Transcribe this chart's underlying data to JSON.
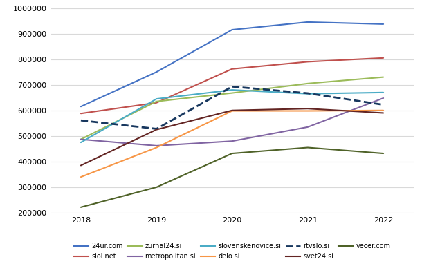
{
  "years": [
    2018,
    2019,
    2020,
    2021,
    2022
  ],
  "series_order": [
    "24ur.com",
    "siol.net",
    "zurnal24.si",
    "metropolitan.si",
    "slovenskenovice.si",
    "delo.si",
    "rtvslo.si",
    "svet24.si",
    "vecer.com"
  ],
  "series": {
    "24ur.com": {
      "values": [
        615000,
        750000,
        915000,
        945000,
        937000
      ],
      "color": "#4472C4",
      "linestyle": "solid",
      "linewidth": 1.5
    },
    "siol.net": {
      "values": [
        588000,
        630000,
        762000,
        790000,
        805000
      ],
      "color": "#C0504D",
      "linestyle": "solid",
      "linewidth": 1.5
    },
    "zurnal24.si": {
      "values": [
        487000,
        635000,
        668000,
        705000,
        730000
      ],
      "color": "#9BBB59",
      "linestyle": "solid",
      "linewidth": 1.5
    },
    "metropolitan.si": {
      "values": [
        487000,
        462000,
        480000,
        535000,
        648000
      ],
      "color": "#8064A2",
      "linestyle": "solid",
      "linewidth": 1.5
    },
    "slovenskenovice.si": {
      "values": [
        475000,
        645000,
        680000,
        665000,
        670000
      ],
      "color": "#4BACC6",
      "linestyle": "solid",
      "linewidth": 1.5
    },
    "delo.si": {
      "values": [
        340000,
        455000,
        598000,
        598000,
        600000
      ],
      "color": "#F79646",
      "linestyle": "solid",
      "linewidth": 1.5
    },
    "rtvslo.si": {
      "values": [
        561000,
        528000,
        693000,
        667000,
        622000
      ],
      "color": "#17375E",
      "linestyle": "dashed",
      "linewidth": 2.0
    },
    "svet24.si": {
      "values": [
        385000,
        525000,
        600000,
        607000,
        590000
      ],
      "color": "#632523",
      "linestyle": "solid",
      "linewidth": 1.5
    },
    "vecer.com": {
      "values": [
        222000,
        300000,
        432000,
        455000,
        432000
      ],
      "color": "#4F6228",
      "linestyle": "solid",
      "linewidth": 1.5
    }
  },
  "ylim": [
    200000,
    1000000
  ],
  "yticks": [
    200000,
    300000,
    400000,
    500000,
    600000,
    700000,
    800000,
    900000,
    1000000
  ],
  "xticks": [
    2018,
    2019,
    2020,
    2021,
    2022
  ],
  "xlim": [
    2017.6,
    2022.4
  ],
  "background_color": "#FFFFFF",
  "grid_color": "#D9D9D9",
  "legend_row1": [
    "24ur.com",
    "siol.net",
    "zurnal24.si",
    "metropolitan.si",
    "slovenskenovice.si"
  ],
  "legend_row2": [
    "delo.si",
    "rtvslo.si",
    "svet24.si",
    "vecer.com"
  ],
  "tick_fontsize": 8,
  "legend_fontsize": 7
}
